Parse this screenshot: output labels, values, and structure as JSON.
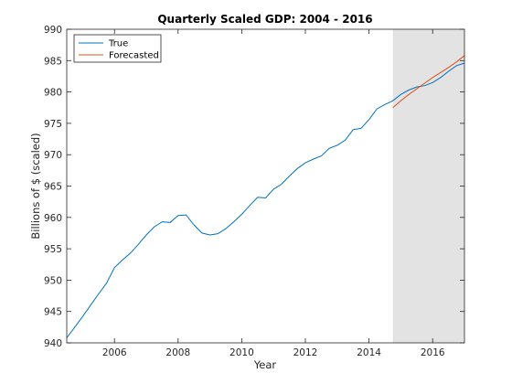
{
  "chart_data": {
    "type": "line",
    "title": "Quarterly Scaled GDP: 2004 - 2016",
    "xlabel": "Year",
    "ylabel": "Billions of $ (scaled)",
    "xlim": [
      2004.5,
      2017.0
    ],
    "ylim": [
      940,
      990
    ],
    "xticks": [
      2006,
      2008,
      2010,
      2012,
      2014,
      2016
    ],
    "yticks": [
      940,
      945,
      950,
      955,
      960,
      965,
      970,
      975,
      980,
      985,
      990
    ],
    "grid": false,
    "legend_position": "top-left",
    "shaded_region": {
      "x_start": 2014.75,
      "x_end": 2017.0,
      "color": "#e3e3e3"
    },
    "series": [
      {
        "name": "True",
        "color": "#0072bd",
        "x": [
          2004.5,
          2004.75,
          2005.0,
          2005.25,
          2005.5,
          2005.75,
          2006.0,
          2006.25,
          2006.5,
          2006.75,
          2007.0,
          2007.25,
          2007.5,
          2007.75,
          2008.0,
          2008.25,
          2008.5,
          2008.75,
          2009.0,
          2009.25,
          2009.5,
          2009.75,
          2010.0,
          2010.25,
          2010.5,
          2010.75,
          2011.0,
          2011.25,
          2011.5,
          2011.75,
          2012.0,
          2012.25,
          2012.5,
          2012.75,
          2013.0,
          2013.25,
          2013.5,
          2013.75,
          2014.0,
          2014.25,
          2014.5,
          2014.75,
          2015.0,
          2015.25,
          2015.5,
          2015.75,
          2016.0,
          2016.25,
          2016.5,
          2016.75,
          2017.0
        ],
        "values": [
          940.8,
          942.5,
          944.2,
          946.0,
          947.8,
          949.5,
          952.0,
          953.2,
          954.3,
          955.7,
          957.2,
          958.5,
          959.3,
          959.2,
          960.3,
          960.4,
          958.8,
          957.5,
          957.2,
          957.4,
          958.2,
          959.3,
          960.5,
          961.9,
          963.2,
          963.1,
          964.5,
          965.3,
          966.6,
          967.8,
          968.7,
          969.3,
          969.8,
          971.0,
          971.5,
          972.3,
          974.0,
          974.2,
          975.6,
          977.3,
          978.0,
          978.6,
          979.6,
          980.3,
          980.8,
          981.0,
          981.5,
          982.3,
          983.3,
          984.2,
          984.6
        ]
      },
      {
        "name": "Forecasted",
        "color": "#d95319",
        "x": [
          2014.75,
          2015.0,
          2015.25,
          2015.5,
          2015.75,
          2016.0,
          2016.25,
          2016.5,
          2016.75,
          2017.0
        ],
        "values": [
          977.5,
          978.6,
          979.6,
          980.5,
          981.4,
          982.3,
          983.1,
          983.9,
          984.8,
          985.8
        ]
      }
    ]
  }
}
